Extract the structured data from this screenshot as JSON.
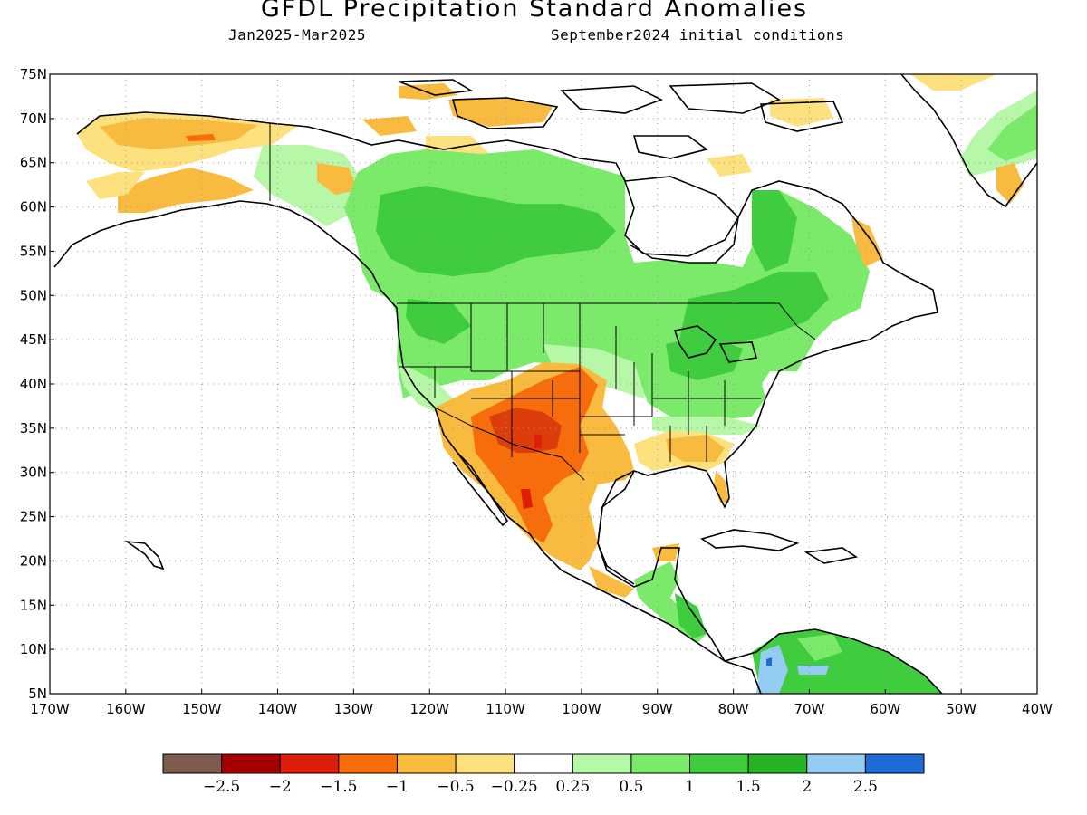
{
  "header": {
    "title": "GFDL Precipitation Standard Anomalies",
    "period": "Jan2025-Mar2025",
    "init": "September2024 initial conditions"
  },
  "map": {
    "projection": "lat-lon",
    "lon_range": [
      -170,
      -40
    ],
    "lat_range": [
      5,
      75
    ],
    "lat_labels": [
      "75N",
      "70N",
      "65N",
      "60N",
      "55N",
      "50N",
      "45N",
      "40N",
      "35N",
      "30N",
      "25N",
      "20N",
      "15N",
      "10N",
      "5N"
    ],
    "lon_labels": [
      "170W",
      "160W",
      "150W",
      "140W",
      "130W",
      "120W",
      "110W",
      "100W",
      "90W",
      "80W",
      "70W",
      "60W",
      "50W",
      "40W"
    ],
    "grid": "dotted",
    "land_outline_color": "#000000",
    "anomaly_regions": [
      {
        "name": "alaska-north-slope",
        "color": "#f8bb40"
      },
      {
        "name": "southwest-us-core",
        "color": "#dc3d0a"
      },
      {
        "name": "mexico-southwest-us",
        "color": "#f76d0b"
      },
      {
        "name": "southern-plains-gulf",
        "color": "#f8bb40"
      },
      {
        "name": "canada-north-us",
        "color": "#7bea6b"
      },
      {
        "name": "eastern-canada-great-lakes",
        "color": "#3fcc3f"
      },
      {
        "name": "colombia-venezuela",
        "color": "#3fcc3f"
      },
      {
        "name": "colombia-wet-core",
        "color": "#94ccf2"
      },
      {
        "name": "greenland-east",
        "color": "#b6f8a7"
      }
    ]
  },
  "colorbar": {
    "colors": [
      "#7d5b4f",
      "#a40000",
      "#dc1e0a",
      "#f76d0b",
      "#f8bb40",
      "#fde17e",
      "#ffffff",
      "#b6f8a7",
      "#7bea6b",
      "#3fcc3f",
      "#26b426",
      "#94ccf2",
      "#1e6bd6"
    ],
    "labels": [
      "-2.5",
      "-2",
      "-1.5",
      "-1",
      "-0.5",
      "-0.25",
      "0.25",
      "0.5",
      "1",
      "1.5",
      "2",
      "2.5"
    ]
  }
}
